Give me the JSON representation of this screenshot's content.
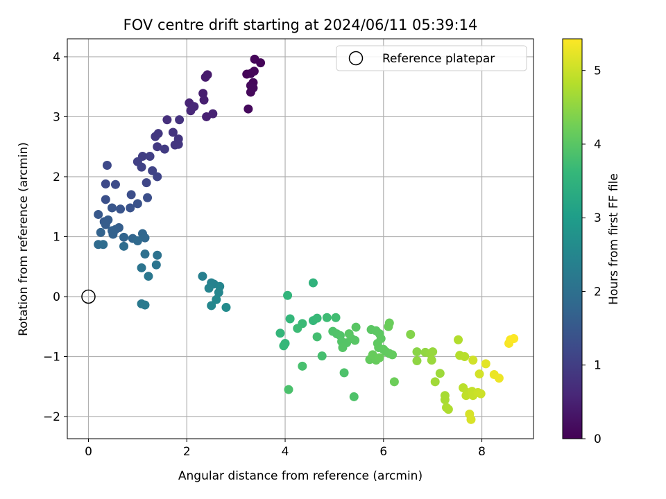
{
  "chart_data": {
    "type": "scatter",
    "title": "FOV centre drift starting at 2024/06/11 05:39:14",
    "xlabel": "Angular distance from reference (arcmin)",
    "ylabel": "Rotation from reference (arcmin)",
    "xlim": [
      -0.43,
      9.05
    ],
    "ylim": [
      -2.37,
      4.3
    ],
    "xticks": [
      0,
      2,
      4,
      6,
      8
    ],
    "yticks": [
      -2,
      -1,
      0,
      1,
      2,
      3,
      4
    ],
    "grid": true,
    "legend": {
      "position": "top-right",
      "entries": [
        "Reference platepar"
      ]
    },
    "reference_point": {
      "x": 0,
      "y": 0
    },
    "colorbar": {
      "label": "Hours from first FF file",
      "colormap": "viridis",
      "range": [
        0,
        5.43
      ],
      "ticks": [
        0,
        1,
        2,
        3,
        4,
        5
      ]
    },
    "colormap_stops": [
      "#440154",
      "#482878",
      "#3e4989",
      "#31688e",
      "#26828e",
      "#1f9e89",
      "#35b779",
      "#6ece58",
      "#b5de2b",
      "#fde725"
    ],
    "points": [
      [
        3.22,
        3.71,
        0.05
      ],
      [
        3.3,
        3.72,
        0.07
      ],
      [
        3.38,
        3.96,
        0.08
      ],
      [
        3.5,
        3.9,
        0.06
      ],
      [
        3.35,
        3.57,
        0.1
      ],
      [
        3.37,
        3.76,
        0.09
      ],
      [
        3.3,
        3.52,
        0.11
      ],
      [
        3.3,
        3.41,
        0.12
      ],
      [
        3.25,
        3.13,
        0.13
      ],
      [
        3.35,
        3.48,
        0.14
      ],
      [
        2.42,
        3.7,
        0.4
      ],
      [
        2.38,
        3.66,
        0.42
      ],
      [
        2.33,
        3.39,
        0.45
      ],
      [
        2.35,
        3.28,
        0.47
      ],
      [
        2.05,
        3.23,
        0.55
      ],
      [
        2.08,
        3.1,
        0.6
      ],
      [
        2.15,
        3.17,
        0.62
      ],
      [
        2.4,
        3.0,
        0.5
      ],
      [
        2.53,
        3.05,
        0.52
      ],
      [
        1.6,
        2.95,
        0.75
      ],
      [
        1.85,
        2.95,
        0.8
      ],
      [
        1.72,
        2.74,
        0.82
      ],
      [
        1.36,
        2.67,
        0.9
      ],
      [
        1.42,
        2.72,
        0.88
      ],
      [
        1.83,
        2.63,
        0.85
      ],
      [
        1.83,
        2.54,
        0.87
      ],
      [
        1.76,
        2.53,
        0.86
      ],
      [
        1.4,
        2.5,
        0.92
      ],
      [
        1.55,
        2.46,
        0.95
      ],
      [
        1.1,
        2.34,
        1.0
      ],
      [
        1.25,
        2.34,
        1.02
      ],
      [
        1.0,
        2.25,
        1.05
      ],
      [
        1.08,
        2.16,
        1.08
      ],
      [
        1.3,
        2.1,
        1.1
      ],
      [
        1.4,
        2.0,
        1.12
      ],
      [
        1.18,
        1.9,
        1.15
      ],
      [
        0.38,
        2.19,
        1.2
      ],
      [
        0.35,
        1.88,
        1.22
      ],
      [
        0.55,
        1.87,
        1.25
      ],
      [
        0.87,
        1.7,
        1.3
      ],
      [
        0.35,
        1.62,
        1.35
      ],
      [
        1.2,
        1.65,
        1.32
      ],
      [
        1.0,
        1.55,
        1.38
      ],
      [
        0.85,
        1.48,
        1.4
      ],
      [
        0.65,
        1.46,
        1.42
      ],
      [
        0.48,
        1.48,
        1.45
      ],
      [
        0.2,
        1.37,
        1.5
      ],
      [
        0.32,
        1.25,
        1.55
      ],
      [
        0.4,
        1.28,
        1.57
      ],
      [
        0.35,
        1.2,
        1.6
      ],
      [
        0.62,
        1.15,
        1.62
      ],
      [
        0.55,
        1.12,
        1.65
      ],
      [
        0.48,
        1.1,
        1.67
      ],
      [
        0.5,
        1.04,
        1.7
      ],
      [
        0.25,
        1.07,
        1.72
      ],
      [
        0.72,
        0.99,
        1.75
      ],
      [
        0.9,
        0.97,
        1.78
      ],
      [
        1.1,
        1.05,
        1.8
      ],
      [
        1.15,
        0.98,
        1.82
      ],
      [
        1.0,
        0.93,
        1.85
      ],
      [
        0.2,
        0.87,
        1.87
      ],
      [
        0.3,
        0.87,
        1.9
      ],
      [
        0.72,
        0.84,
        1.92
      ],
      [
        1.15,
        0.71,
        2.0
      ],
      [
        1.4,
        0.69,
        2.05
      ],
      [
        1.08,
        0.48,
        2.1
      ],
      [
        1.38,
        0.53,
        2.08
      ],
      [
        1.22,
        0.34,
        2.15
      ],
      [
        1.08,
        -0.12,
        2.2
      ],
      [
        1.15,
        -0.14,
        2.22
      ],
      [
        2.32,
        0.34,
        2.35
      ],
      [
        2.5,
        0.23,
        2.4
      ],
      [
        2.55,
        0.21,
        2.42
      ],
      [
        2.45,
        0.14,
        2.45
      ],
      [
        2.67,
        0.17,
        2.48
      ],
      [
        2.65,
        0.07,
        2.5
      ],
      [
        2.6,
        -0.05,
        2.55
      ],
      [
        2.5,
        -0.15,
        2.52
      ],
      [
        2.8,
        -0.18,
        2.6
      ],
      [
        4.57,
        0.23,
        3.5
      ],
      [
        4.05,
        0.02,
        3.55
      ],
      [
        4.1,
        -0.37,
        3.6
      ],
      [
        4.57,
        -0.4,
        3.62
      ],
      [
        4.65,
        -0.36,
        3.65
      ],
      [
        4.35,
        -0.45,
        3.68
      ],
      [
        4.25,
        -0.53,
        3.7
      ],
      [
        4.85,
        -0.35,
        3.72
      ],
      [
        5.03,
        -0.35,
        3.75
      ],
      [
        3.9,
        -0.61,
        3.58
      ],
      [
        4.0,
        -0.78,
        3.6
      ],
      [
        3.97,
        -0.82,
        3.62
      ],
      [
        4.65,
        -0.67,
        3.78
      ],
      [
        4.75,
        -0.99,
        3.8
      ],
      [
        4.35,
        -1.16,
        3.82
      ],
      [
        4.07,
        -1.55,
        3.85
      ],
      [
        5.2,
        -1.27,
        3.88
      ],
      [
        5.4,
        -1.67,
        3.9
      ],
      [
        4.97,
        -0.58,
        3.9
      ],
      [
        5.05,
        -0.62,
        3.92
      ],
      [
        5.12,
        -0.65,
        3.93
      ],
      [
        5.15,
        -0.75,
        3.95
      ],
      [
        5.25,
        -0.77,
        3.96
      ],
      [
        5.17,
        -0.85,
        3.97
      ],
      [
        5.35,
        -0.7,
        3.98
      ],
      [
        5.42,
        -0.73,
        3.99
      ],
      [
        5.44,
        -0.51,
        4.0
      ],
      [
        5.3,
        -0.62,
        4.01
      ],
      [
        5.75,
        -0.55,
        4.02
      ],
      [
        5.85,
        -0.57,
        4.03
      ],
      [
        5.92,
        -0.62,
        4.04
      ],
      [
        5.95,
        -0.7,
        4.05
      ],
      [
        5.88,
        -0.78,
        4.06
      ],
      [
        5.9,
        -0.85,
        4.07
      ],
      [
        6.0,
        -0.88,
        4.08
      ],
      [
        6.05,
        -0.92,
        4.09
      ],
      [
        6.12,
        -0.95,
        4.1
      ],
      [
        6.18,
        -0.97,
        4.11
      ],
      [
        5.72,
        -1.05,
        4.12
      ],
      [
        5.8,
        -1.02,
        4.13
      ],
      [
        5.85,
        -1.06,
        4.14
      ],
      [
        5.78,
        -0.97,
        4.15
      ],
      [
        5.92,
        -1.02,
        4.16
      ],
      [
        6.12,
        -0.44,
        4.17
      ],
      [
        6.1,
        -0.5,
        4.18
      ],
      [
        6.22,
        -1.42,
        4.2
      ],
      [
        6.55,
        -0.63,
        4.4
      ],
      [
        6.68,
        -0.92,
        4.45
      ],
      [
        6.68,
        -1.07,
        4.5
      ],
      [
        6.85,
        -0.93,
        4.52
      ],
      [
        6.95,
        -0.95,
        4.55
      ],
      [
        7.0,
        -0.92,
        4.57
      ],
      [
        6.98,
        -1.06,
        4.6
      ],
      [
        7.15,
        -1.28,
        4.62
      ],
      [
        7.05,
        -1.42,
        4.65
      ],
      [
        7.25,
        -1.65,
        4.7
      ],
      [
        7.25,
        -1.72,
        4.72
      ],
      [
        7.28,
        -1.85,
        4.75
      ],
      [
        7.32,
        -1.88,
        4.77
      ],
      [
        7.52,
        -0.72,
        4.8
      ],
      [
        7.55,
        -0.98,
        4.82
      ],
      [
        7.65,
        -1.0,
        4.85
      ],
      [
        7.62,
        -1.52,
        4.87
      ],
      [
        7.7,
        -1.6,
        4.9
      ],
      [
        7.68,
        -1.65,
        4.92
      ],
      [
        7.8,
        -1.58,
        4.95
      ],
      [
        7.82,
        -1.65,
        4.97
      ],
      [
        7.92,
        -1.6,
        5.0
      ],
      [
        7.98,
        -1.62,
        5.02
      ],
      [
        7.82,
        -1.06,
        5.05
      ],
      [
        7.95,
        -1.29,
        5.08
      ],
      [
        7.75,
        -1.96,
        5.1
      ],
      [
        7.78,
        -2.05,
        5.12
      ],
      [
        8.08,
        -1.12,
        5.2
      ],
      [
        8.25,
        -1.3,
        5.28
      ],
      [
        8.35,
        -1.36,
        5.3
      ],
      [
        8.55,
        -0.78,
        5.38
      ],
      [
        8.58,
        -0.72,
        5.4
      ],
      [
        8.65,
        -0.7,
        5.42
      ]
    ]
  }
}
